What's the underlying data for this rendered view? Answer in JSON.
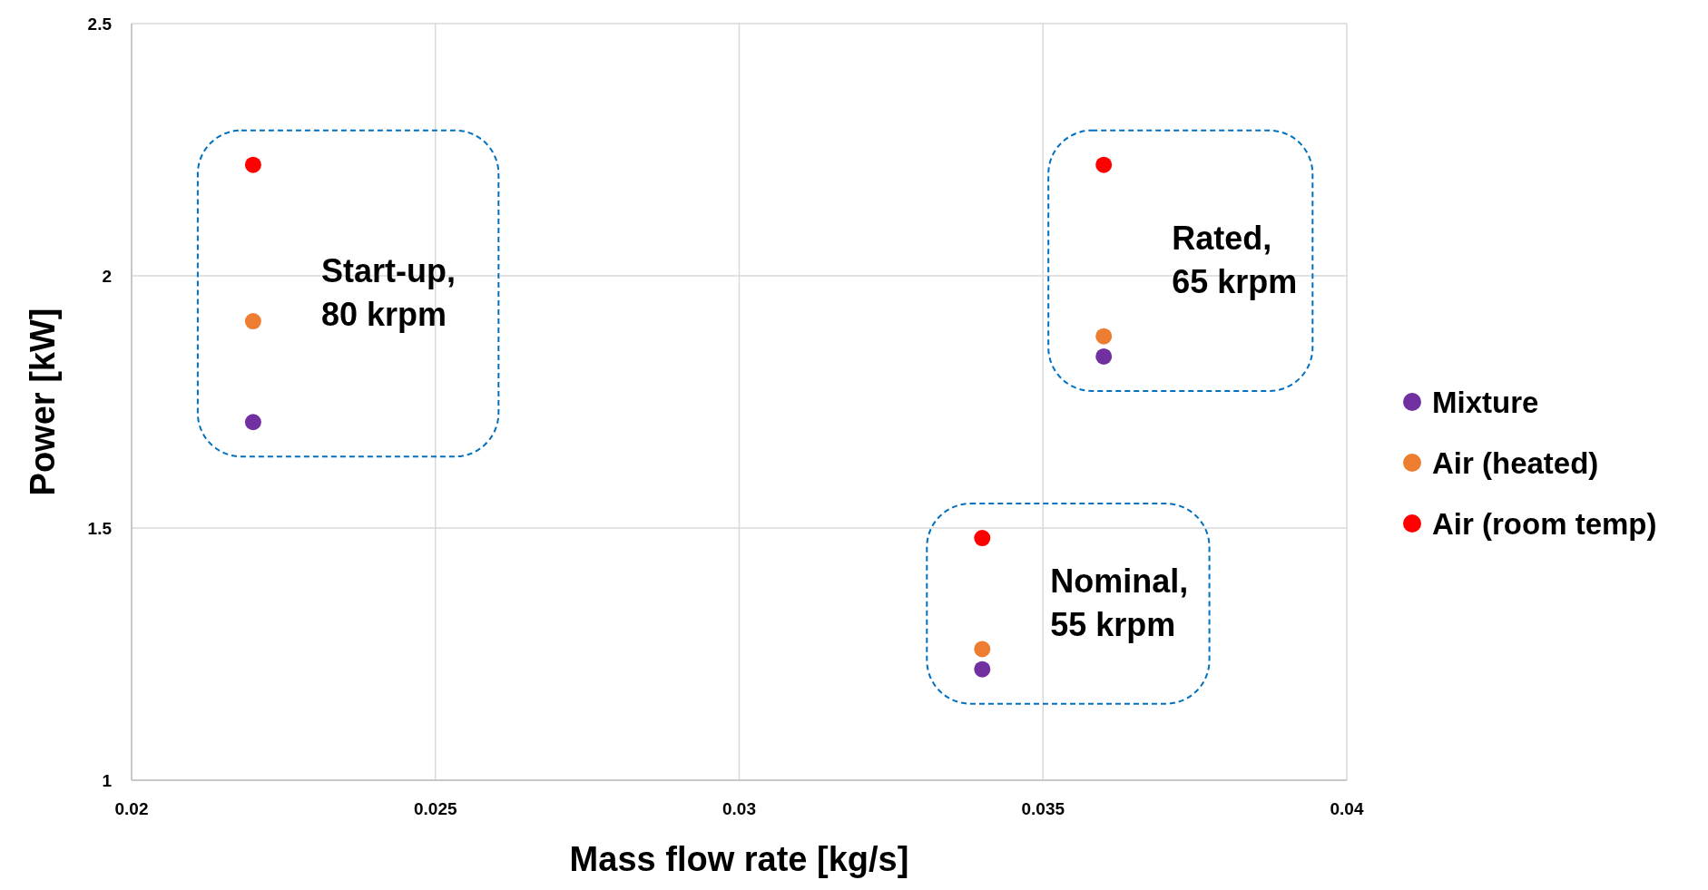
{
  "chart_data": {
    "type": "scatter",
    "xlabel": "Mass flow rate [kg/s]",
    "ylabel": "Power [kW]",
    "xlim": [
      0.02,
      0.04
    ],
    "xticks": [
      0.02,
      0.025,
      0.03,
      0.035,
      0.04
    ],
    "ylim": [
      1,
      2.5
    ],
    "yticks": [
      1,
      1.5,
      2,
      2.5
    ],
    "grid": true,
    "legend": "right",
    "marker": "circle",
    "series": [
      {
        "name": "Mixture",
        "color": "#7030a0",
        "x": [
          0.022,
          0.036,
          0.034
        ],
        "values": [
          1.71,
          1.84,
          1.22
        ]
      },
      {
        "name": "Air (heated)",
        "color": "#ed7d31",
        "x": [
          0.022,
          0.036,
          0.034
        ],
        "values": [
          1.91,
          1.88,
          1.26
        ]
      },
      {
        "name": "Air (room temp)",
        "color": "#ff0000",
        "x": [
          0.022,
          0.036,
          0.034
        ],
        "values": [
          2.22,
          2.22,
          1.48
        ]
      }
    ],
    "annotations": [
      "Start-up,\n80 krpm",
      "Rated,\n65 krpm",
      "Nominal,\n55 krpm"
    ]
  }
}
